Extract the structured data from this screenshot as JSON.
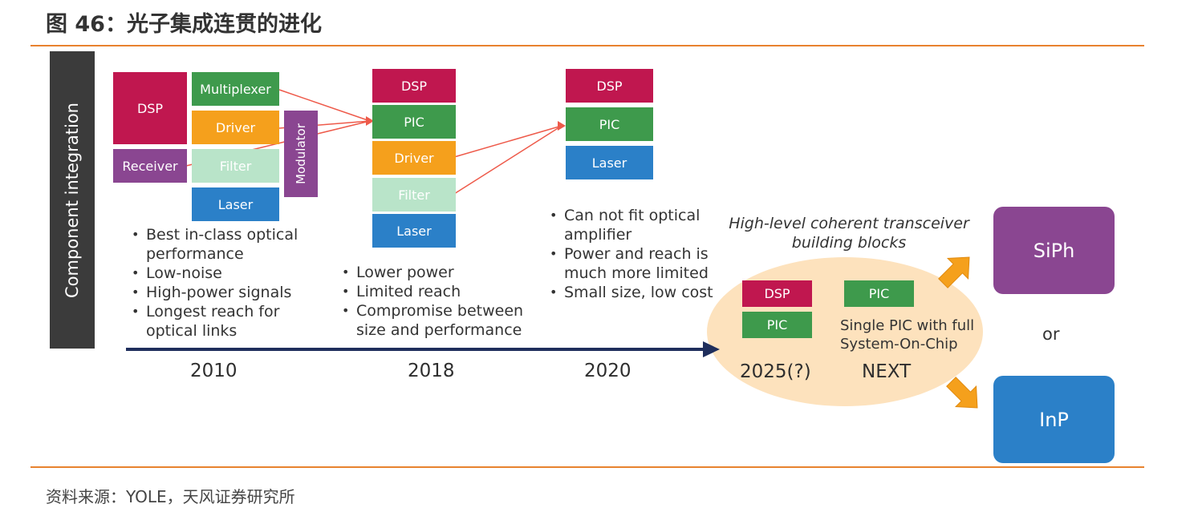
{
  "figure_title": "图 46：光子集成连贯的进化",
  "source": "资料来源：YOLE，天风证券研究所",
  "side_label": "Component integration",
  "colors": {
    "dsp": "#c0174f",
    "pic_green": "#3e9a4c",
    "driver": "#f5a01c",
    "filter": "#b9e4c9",
    "laser": "#2b80c8",
    "purple": "#8a4691",
    "orange_rule": "#e8822e",
    "ellipse": "#fde2bd",
    "timeline": "#1f2e5c",
    "connector": "#ee5a4a"
  },
  "stage_2010": {
    "blocks": {
      "dsp": "DSP",
      "multiplexer": "Multiplexer",
      "driver": "Driver",
      "receiver": "Receiver",
      "filter": "Filter",
      "modulator": "Modulator",
      "laser": "Laser"
    },
    "bullets": [
      "Best in-class optical performance",
      "Low-noise",
      "High-power signals",
      "Longest reach for optical links"
    ],
    "year": "2010"
  },
  "stage_2018": {
    "blocks": {
      "dsp": "DSP",
      "pic": "PIC",
      "driver": "Driver",
      "filter": "Filter",
      "laser": "Laser"
    },
    "bullets": [
      "Lower power",
      "Limited reach",
      "Compromise between size and performance"
    ],
    "year": "2018"
  },
  "stage_2020": {
    "blocks": {
      "dsp": "DSP",
      "pic": "PIC",
      "laser": "Laser"
    },
    "bullets": [
      "Can not fit optical amplifier",
      "Power and reach is much more limited",
      "Small size, low cost"
    ],
    "year": "2020"
  },
  "future": {
    "caption": "High-level coherent transceiver building blocks",
    "dsp": "DSP",
    "pic": "PIC",
    "pic_next": "PIC",
    "next_desc": "Single PIC with full System-On-Chip",
    "year_2025": "2025(?)",
    "year_next": "NEXT"
  },
  "options": {
    "siph": "SiPh",
    "or": "or",
    "inp": "InP"
  }
}
